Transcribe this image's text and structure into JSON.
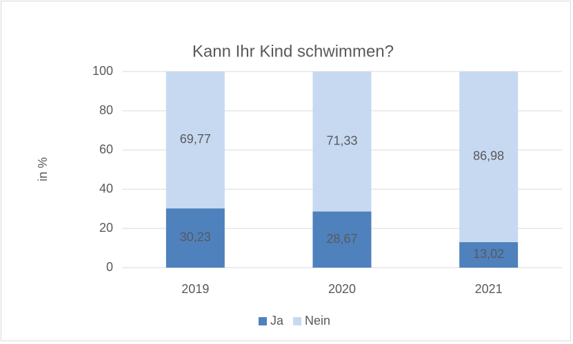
{
  "chart_data": {
    "type": "stacked_bar",
    "title": "Kann Ihr Kind schwimmen?",
    "y_label": "in %",
    "categories": [
      "2019",
      "2020",
      "2021"
    ],
    "series": [
      {
        "name": "Ja",
        "color": "#4f81bd",
        "values": [
          30.23,
          28.67,
          13.02
        ],
        "value_labels": [
          "30,23",
          "28,67",
          "13,02"
        ]
      },
      {
        "name": "Nein",
        "color": "#c6d9f1",
        "values": [
          69.77,
          71.33,
          86.98
        ],
        "value_labels": [
          "69,77",
          "71,33",
          "86,98"
        ]
      }
    ],
    "ylim": [
      0,
      100
    ],
    "yticks": [
      0,
      20,
      40,
      60,
      80,
      100
    ],
    "grid": true,
    "legend": "bottom"
  }
}
